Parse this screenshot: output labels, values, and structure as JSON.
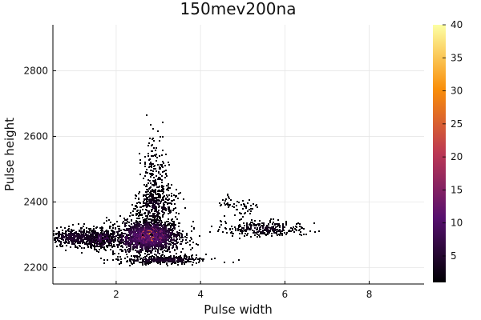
{
  "chart_data": {
    "type": "heatmap",
    "title": "150mev200na",
    "xlabel": "Pulse width",
    "ylabel": "Pulse height",
    "xlim": [
      0.5,
      9.3
    ],
    "ylim": [
      2150,
      2940
    ],
    "xticks": [
      2,
      4,
      6,
      8
    ],
    "yticks": [
      2200,
      2400,
      2600,
      2800
    ],
    "grid": true,
    "colorbar": {
      "colormap": "inferno",
      "range": [
        1,
        40
      ],
      "ticks": [
        5,
        10,
        15,
        20,
        25,
        30,
        35,
        40
      ]
    },
    "colors": {
      "low": "#000004",
      "mid_low": "#56106e",
      "mid": "#bb3754",
      "mid_high": "#f98e09",
      "high": "#fcffa4"
    },
    "clusters": [
      {
        "x": 2.8,
        "y": 2300,
        "sx": 0.22,
        "sy": 18,
        "peak": 40,
        "n": 1400
      },
      {
        "x": 2.7,
        "y": 2295,
        "sx": 0.45,
        "sy": 28,
        "peak": 14,
        "n": 900
      },
      {
        "x": 1.6,
        "y": 2290,
        "sx": 0.22,
        "sy": 14,
        "peak": 10,
        "n": 350
      },
      {
        "x": 1.0,
        "y": 2295,
        "sx": 0.35,
        "sy": 15,
        "peak": 6,
        "n": 400
      },
      {
        "x": 2.9,
        "y": 2390,
        "sx": 0.25,
        "sy": 25,
        "peak": 5,
        "n": 300
      },
      {
        "x": 2.9,
        "y": 2470,
        "sx": 0.18,
        "sy": 70,
        "peak": 3,
        "n": 250
      },
      {
        "x": 3.1,
        "y": 2225,
        "sx": 0.5,
        "sy": 6,
        "peak": 6,
        "n": 350
      },
      {
        "x": 5.5,
        "y": 2320,
        "sx": 0.5,
        "sy": 12,
        "peak": 4,
        "n": 300
      },
      {
        "x": 4.9,
        "y": 2390,
        "sx": 0.25,
        "sy": 15,
        "peak": 2,
        "n": 60
      }
    ]
  }
}
